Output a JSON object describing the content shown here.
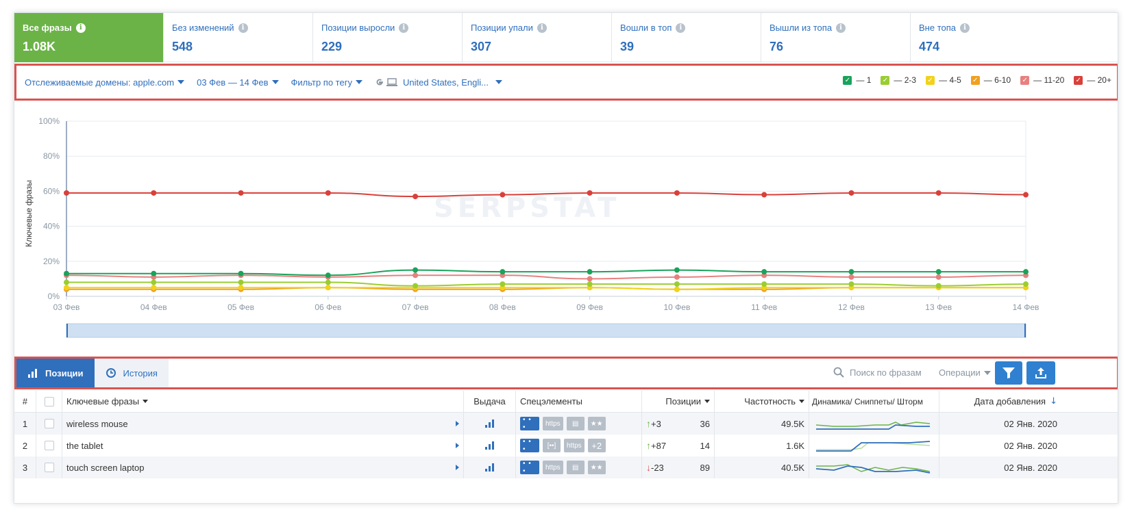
{
  "summary": [
    {
      "label": "Все фразы",
      "value": "1.08K",
      "active": true
    },
    {
      "label": "Без изменений",
      "value": "548"
    },
    {
      "label": "Позиции выросли",
      "value": "229"
    },
    {
      "label": "Позиции упали",
      "value": "307"
    },
    {
      "label": "Вошли в топ",
      "value": "39"
    },
    {
      "label": "Вышли из топа",
      "value": "76"
    },
    {
      "label": "Вне топа",
      "value": "474"
    }
  ],
  "filters": {
    "domains": "Отслеживаемые домены: apple.com",
    "dates": "03 Фев — 14 Фев",
    "tag": "Фильтр по тегу",
    "region": "United States, Engli..."
  },
  "legend": [
    {
      "label": "— 1",
      "color": "#1aa35a"
    },
    {
      "label": "— 2-3",
      "color": "#9acd32"
    },
    {
      "label": "— 4-5",
      "color": "#f2d21a"
    },
    {
      "label": "— 6-10",
      "color": "#f0a020"
    },
    {
      "label": "— 11-20",
      "color": "#e88080"
    },
    {
      "label": "— 20+",
      "color": "#d9403a"
    }
  ],
  "chart_data": {
    "type": "line",
    "ylabel": "Ключевые фразы",
    "ylim": [
      0,
      100
    ],
    "y_ticks": [
      "0%",
      "20%",
      "40%",
      "60%",
      "80%",
      "100%"
    ],
    "categories": [
      "03 Фев",
      "04 Фев",
      "05 Фев",
      "06 Фев",
      "07 Фев",
      "08 Фев",
      "09 Фев",
      "10 Фев",
      "11 Фев",
      "12 Фев",
      "13 Фев",
      "14 Фев"
    ],
    "series": [
      {
        "name": "20+",
        "color": "#d9403a",
        "values": [
          59,
          59,
          59,
          59,
          57,
          58,
          59,
          59,
          58,
          59,
          59,
          58
        ]
      },
      {
        "name": "1",
        "color": "#1aa35a",
        "values": [
          13,
          13,
          13,
          12,
          15,
          14,
          14,
          15,
          14,
          14,
          14,
          14
        ]
      },
      {
        "name": "11-20",
        "color": "#e88080",
        "values": [
          12,
          11,
          12,
          11,
          12,
          12,
          10,
          11,
          12,
          11,
          11,
          12
        ]
      },
      {
        "name": "2-3",
        "color": "#9acd32",
        "values": [
          8,
          8,
          8,
          8,
          6,
          7,
          7,
          7,
          7,
          7,
          6,
          7
        ]
      },
      {
        "name": "4-5",
        "color": "#f2d21a",
        "values": [
          5,
          5,
          5,
          5,
          5,
          5,
          5,
          4,
          5,
          5,
          5,
          5
        ]
      },
      {
        "name": "6-10",
        "color": "#f0a020",
        "values": [
          4,
          4,
          4,
          5,
          4,
          4,
          5,
          4,
          4,
          5,
          5,
          5
        ]
      }
    ],
    "grid": true
  },
  "watermark": "SERPSTAT",
  "tabs": {
    "positions": "Позиции",
    "history": "История"
  },
  "search": {
    "placeholder": "Поиск по фразам"
  },
  "operations": "Операции",
  "table": {
    "headers": {
      "num": "#",
      "keywords": "Ключевые фразы",
      "serp": "Выдача",
      "special": "Спецэлементы",
      "positions": "Позиции",
      "frequency": "Частотность",
      "dynamics": "Динамика/ Сниппеты/ Шторм",
      "date": "Дата добавления"
    },
    "rows": [
      {
        "num": "1",
        "keyword": "wireless mouse",
        "chips": [
          "• • •",
          "https",
          "▤",
          "★★"
        ],
        "change": "+3",
        "dir": "up",
        "position": "36",
        "frequency": "49.5K",
        "date": "02 Янв. 2020"
      },
      {
        "num": "2",
        "keyword": "the tablet",
        "chips": [
          "• • •",
          "[••]",
          "https",
          "+2"
        ],
        "change": "+87",
        "dir": "up",
        "position": "14",
        "frequency": "1.6K",
        "date": "02 Янв. 2020"
      },
      {
        "num": "3",
        "keyword": "touch screen laptop",
        "chips": [
          "• • •",
          "https",
          "▤",
          "★★"
        ],
        "change": "-23",
        "dir": "down",
        "position": "89",
        "frequency": "40.5K",
        "date": "02 Янв. 2020"
      }
    ]
  }
}
